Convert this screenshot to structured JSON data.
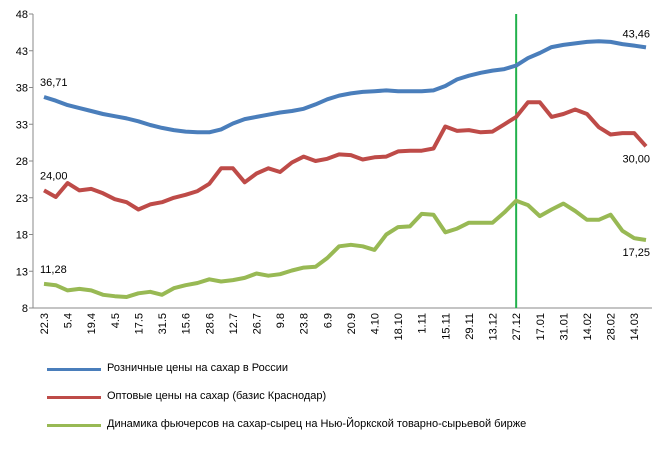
{
  "chart_data": {
    "type": "line",
    "categories": [
      "22.3",
      null,
      "5.4",
      null,
      "19.4",
      null,
      "4.5",
      null,
      "17.5",
      null,
      "31.5",
      null,
      "15.6",
      null,
      "28.6",
      null,
      "12.7",
      null,
      "26.7",
      null,
      "9.8",
      null,
      "23.8",
      null,
      "6.9",
      null,
      "20.9",
      null,
      "4.10",
      null,
      "18.10",
      null,
      "1.11",
      null,
      "15.11",
      null,
      "29.11",
      null,
      "13.12",
      null,
      "27.12",
      null,
      "17.01",
      null,
      "31.01",
      null,
      "14.02",
      null,
      "28.02",
      null,
      "14.03",
      null
    ],
    "series": [
      {
        "name": "Розничные цены на сахар в России",
        "color": "#4a7ebb",
        "values": [
          36.71,
          36.2,
          35.6,
          35.2,
          34.8,
          34.4,
          34.1,
          33.8,
          33.4,
          32.9,
          32.5,
          32.2,
          32.0,
          31.9,
          31.9,
          32.3,
          33.1,
          33.7,
          34.0,
          34.3,
          34.6,
          34.8,
          35.1,
          35.7,
          36.4,
          36.9,
          37.2,
          37.4,
          37.5,
          37.6,
          37.5,
          37.5,
          37.5,
          37.6,
          38.2,
          39.1,
          39.6,
          40.0,
          40.3,
          40.5,
          41.0,
          42.0,
          42.7,
          43.5,
          43.8,
          44.0,
          44.2,
          44.3,
          44.2,
          43.9,
          43.7,
          43.46
        ],
        "value_labels": [
          "36,71",
          null,
          null,
          null,
          null,
          null,
          null,
          null,
          null,
          null,
          null,
          null,
          null,
          null,
          null,
          null,
          null,
          null,
          null,
          null,
          null,
          null,
          null,
          null,
          null,
          null,
          null,
          null,
          null,
          null,
          null,
          null,
          null,
          null,
          null,
          null,
          null,
          null,
          null,
          null,
          null,
          null,
          null,
          null,
          null,
          null,
          null,
          null,
          null,
          null,
          null,
          "43,46"
        ]
      },
      {
        "name": "Оптовые цены на сахар (базис Краснодар)",
        "color": "#be4b48",
        "values": [
          24.0,
          23.1,
          25.0,
          24.0,
          24.2,
          23.6,
          22.8,
          22.4,
          21.4,
          22.1,
          22.4,
          23.0,
          23.4,
          23.9,
          24.9,
          27.0,
          27.0,
          25.1,
          26.3,
          27.0,
          26.5,
          27.8,
          28.6,
          28.0,
          28.3,
          28.9,
          28.8,
          28.2,
          28.5,
          28.6,
          29.3,
          29.4,
          29.4,
          29.7,
          32.7,
          32.1,
          32.2,
          31.9,
          32.0,
          33.0,
          34.0,
          36.0,
          36.0,
          34.0,
          34.4,
          35.0,
          34.4,
          32.6,
          31.6,
          31.8,
          31.8,
          30.0
        ],
        "value_labels": [
          "24,00",
          null,
          null,
          null,
          null,
          null,
          null,
          null,
          null,
          null,
          null,
          null,
          null,
          null,
          null,
          null,
          null,
          null,
          null,
          null,
          null,
          null,
          null,
          null,
          null,
          null,
          null,
          null,
          null,
          null,
          null,
          null,
          null,
          null,
          null,
          null,
          null,
          null,
          null,
          null,
          null,
          null,
          null,
          null,
          null,
          null,
          null,
          null,
          null,
          null,
          null,
          "30,00"
        ]
      },
      {
        "name": "Динамика фьючерсов на сахар-сырец на Нью-Йоркской товарно-сырьевой бирже",
        "color": "#98b954",
        "values": [
          11.28,
          11.1,
          10.4,
          10.6,
          10.4,
          9.8,
          9.6,
          9.5,
          10.0,
          10.2,
          9.8,
          10.7,
          11.1,
          11.4,
          11.9,
          11.6,
          11.8,
          12.1,
          12.7,
          12.4,
          12.6,
          13.1,
          13.5,
          13.6,
          14.8,
          16.4,
          16.6,
          16.4,
          15.9,
          18.0,
          19.0,
          19.1,
          20.8,
          20.7,
          18.3,
          18.8,
          19.6,
          19.6,
          19.6,
          21.0,
          22.6,
          22.0,
          20.5,
          21.4,
          22.2,
          21.2,
          20.0,
          20.0,
          20.7,
          18.5,
          17.5,
          17.25
        ],
        "value_labels": [
          "11,28",
          null,
          null,
          null,
          null,
          null,
          null,
          null,
          null,
          null,
          null,
          null,
          null,
          null,
          null,
          null,
          null,
          null,
          null,
          null,
          null,
          null,
          null,
          null,
          null,
          null,
          null,
          null,
          null,
          null,
          null,
          null,
          null,
          null,
          null,
          null,
          null,
          null,
          null,
          null,
          null,
          null,
          null,
          null,
          null,
          null,
          null,
          null,
          null,
          null,
          null,
          "17,25"
        ]
      }
    ],
    "ylim": [
      8,
      48
    ],
    "yticks": [
      8,
      13,
      18,
      23,
      28,
      33,
      38,
      43,
      48
    ],
    "vline": {
      "category": "27.12",
      "color": "#22b14c"
    },
    "legend": "bottom"
  }
}
